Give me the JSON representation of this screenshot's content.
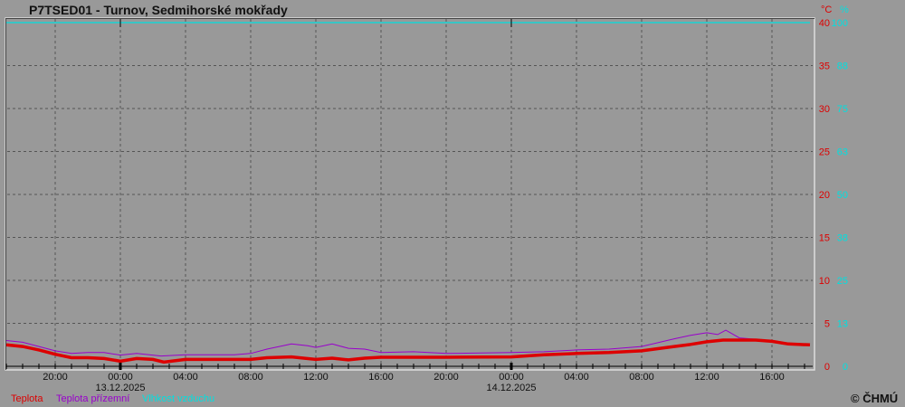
{
  "chart_data": {
    "type": "line",
    "title": "P7TSED01 - Turnov, Sedmihorské mokřady",
    "left_unit": "°C",
    "right_unit": "%",
    "y_left": {
      "range": [
        0,
        40
      ],
      "ticks": [
        0,
        5,
        10,
        15,
        20,
        25,
        30,
        35,
        40
      ]
    },
    "y_right": {
      "range": [
        0,
        100
      ],
      "ticks": [
        "0",
        "13",
        "25",
        "38",
        "50",
        "63",
        "75",
        "88",
        "100"
      ]
    },
    "x_range": [
      "2025-12-12 17:00",
      "2025-12-14 18:20"
    ],
    "x_ticks": [
      {
        "t": "2025-12-12 20:00",
        "label": "20:00"
      },
      {
        "t": "2025-12-13 00:00",
        "label": "00:00",
        "date": "13.12.2025"
      },
      {
        "t": "2025-12-13 04:00",
        "label": "04:00"
      },
      {
        "t": "2025-12-13 08:00",
        "label": "08:00"
      },
      {
        "t": "2025-12-13 12:00",
        "label": "12:00"
      },
      {
        "t": "2025-12-13 16:00",
        "label": "16:00"
      },
      {
        "t": "2025-12-13 20:00",
        "label": "20:00"
      },
      {
        "t": "2025-12-14 00:00",
        "label": "00:00",
        "date": "14.12.2025"
      },
      {
        "t": "2025-12-14 04:00",
        "label": "04:00"
      },
      {
        "t": "2025-12-14 08:00",
        "label": "08:00"
      },
      {
        "t": "2025-12-14 12:00",
        "label": "12:00"
      },
      {
        "t": "2025-12-14 16:00",
        "label": "16:00"
      }
    ],
    "grid": true,
    "legend_placement": "bottom-left",
    "series": [
      {
        "name": "Teplota",
        "color": "#dd0000",
        "axis": "left",
        "points": [
          [
            "2025-12-12 17:00",
            2.5
          ],
          [
            "2025-12-12 18:00",
            2.3
          ],
          [
            "2025-12-12 19:00",
            1.9
          ],
          [
            "2025-12-12 20:00",
            1.4
          ],
          [
            "2025-12-12 21:00",
            1.0
          ],
          [
            "2025-12-12 22:00",
            1.0
          ],
          [
            "2025-12-12 23:00",
            0.9
          ],
          [
            "2025-12-13 00:00",
            0.6
          ],
          [
            "2025-12-13 01:00",
            0.9
          ],
          [
            "2025-12-13 02:00",
            0.8
          ],
          [
            "2025-12-13 02:40",
            0.5
          ],
          [
            "2025-12-13 04:00",
            0.8
          ],
          [
            "2025-12-13 06:00",
            0.8
          ],
          [
            "2025-12-13 08:00",
            0.8
          ],
          [
            "2025-12-13 09:00",
            1.0
          ],
          [
            "2025-12-13 10:30",
            1.1
          ],
          [
            "2025-12-13 12:00",
            0.8
          ],
          [
            "2025-12-13 13:00",
            0.95
          ],
          [
            "2025-12-13 14:00",
            0.75
          ],
          [
            "2025-12-13 15:00",
            0.95
          ],
          [
            "2025-12-13 16:00",
            1.05
          ],
          [
            "2025-12-13 20:00",
            1.05
          ],
          [
            "2025-12-14 00:00",
            1.1
          ],
          [
            "2025-12-14 02:00",
            1.35
          ],
          [
            "2025-12-14 04:00",
            1.5
          ],
          [
            "2025-12-14 06:00",
            1.6
          ],
          [
            "2025-12-14 08:00",
            1.8
          ],
          [
            "2025-12-14 10:00",
            2.3
          ],
          [
            "2025-12-14 11:00",
            2.55
          ],
          [
            "2025-12-14 12:00",
            2.85
          ],
          [
            "2025-12-14 13:00",
            3.05
          ],
          [
            "2025-12-14 15:00",
            3.05
          ],
          [
            "2025-12-14 16:00",
            2.9
          ],
          [
            "2025-12-14 17:00",
            2.6
          ],
          [
            "2025-12-14 18:20",
            2.5
          ]
        ]
      },
      {
        "name": "Teplota přízemní",
        "color": "#9900cc",
        "axis": "left",
        "points": [
          [
            "2025-12-12 17:00",
            3.0
          ],
          [
            "2025-12-12 18:00",
            2.8
          ],
          [
            "2025-12-12 19:00",
            2.3
          ],
          [
            "2025-12-12 20:00",
            1.8
          ],
          [
            "2025-12-12 21:00",
            1.5
          ],
          [
            "2025-12-12 22:00",
            1.6
          ],
          [
            "2025-12-12 23:00",
            1.6
          ],
          [
            "2025-12-13 00:00",
            1.3
          ],
          [
            "2025-12-13 01:00",
            1.5
          ],
          [
            "2025-12-13 02:30",
            1.2
          ],
          [
            "2025-12-13 04:00",
            1.35
          ],
          [
            "2025-12-13 07:00",
            1.35
          ],
          [
            "2025-12-13 08:00",
            1.5
          ],
          [
            "2025-12-13 09:00",
            2.0
          ],
          [
            "2025-12-13 10:30",
            2.6
          ],
          [
            "2025-12-13 11:30",
            2.4
          ],
          [
            "2025-12-13 12:00",
            2.2
          ],
          [
            "2025-12-13 13:00",
            2.6
          ],
          [
            "2025-12-13 14:00",
            2.1
          ],
          [
            "2025-12-13 15:00",
            2.0
          ],
          [
            "2025-12-13 16:00",
            1.6
          ],
          [
            "2025-12-13 18:00",
            1.7
          ],
          [
            "2025-12-13 20:00",
            1.5
          ],
          [
            "2025-12-14 00:00",
            1.6
          ],
          [
            "2025-12-14 02:00",
            1.7
          ],
          [
            "2025-12-14 04:00",
            1.9
          ],
          [
            "2025-12-14 06:00",
            2.0
          ],
          [
            "2025-12-14 08:00",
            2.3
          ],
          [
            "2025-12-14 10:00",
            3.2
          ],
          [
            "2025-12-14 11:00",
            3.6
          ],
          [
            "2025-12-14 12:00",
            3.9
          ],
          [
            "2025-12-14 12:40",
            3.7
          ],
          [
            "2025-12-14 13:10",
            4.2
          ],
          [
            "2025-12-14 14:00",
            3.3
          ],
          [
            "2025-12-14 15:00",
            3.15
          ],
          [
            "2025-12-14 16:00",
            2.9
          ],
          [
            "2025-12-14 17:00",
            2.6
          ],
          [
            "2025-12-14 18:20",
            2.5
          ]
        ]
      },
      {
        "name": "Vlhkost vzduchu",
        "color": "#00e0e0",
        "axis": "right",
        "points": [
          [
            "2025-12-12 17:00",
            100
          ],
          [
            "2025-12-14 18:20",
            100
          ]
        ]
      }
    ]
  },
  "copyright": "© ČHMÚ"
}
